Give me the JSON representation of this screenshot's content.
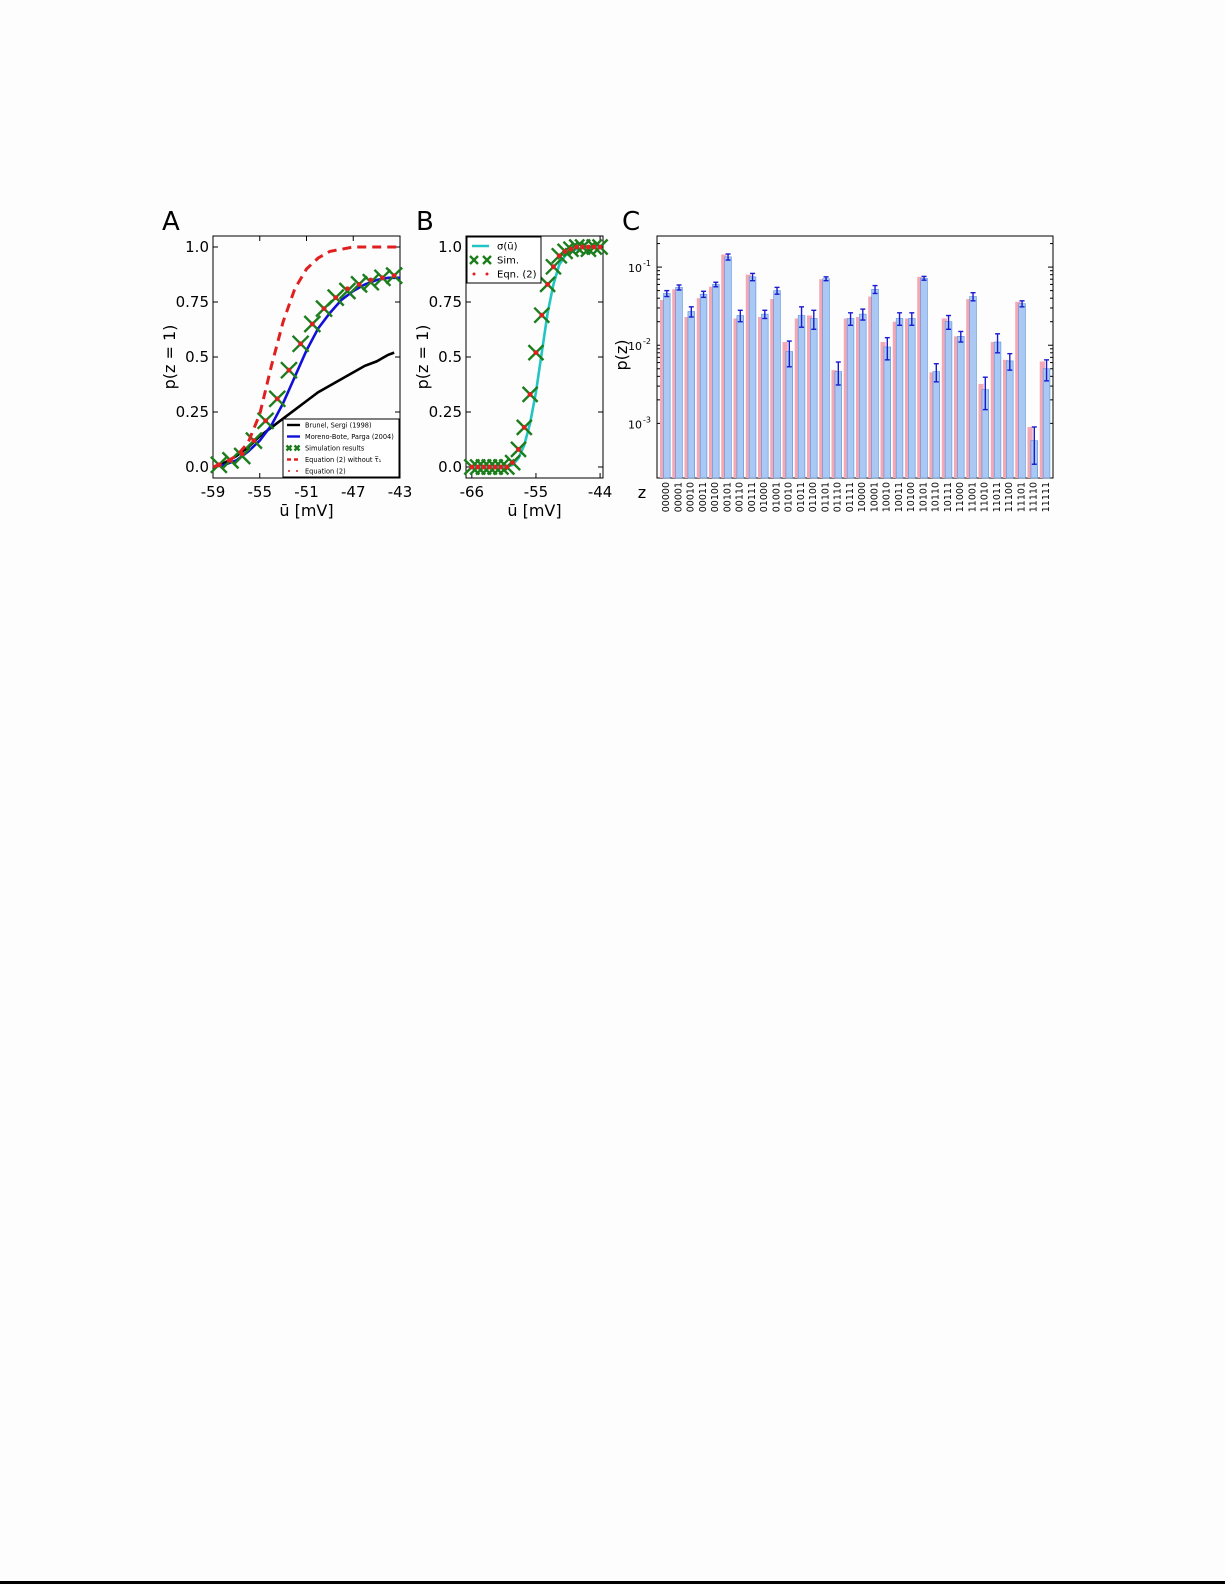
{
  "panels": {
    "A": {
      "label": "A"
    },
    "B": {
      "label": "B"
    },
    "C": {
      "label": "C"
    }
  },
  "colors": {
    "black": "#000000",
    "blue": "#1010d8",
    "green": "#1b7d1b",
    "red": "#e02020",
    "cyan": "#22c4c4",
    "bar_pink": "#f4a7b4",
    "bar_blue": "#a9c8f3",
    "bar_blue_edge": "#5a8fd8",
    "error_blue": "#1a1ad0"
  },
  "chart_data": [
    {
      "id": "A",
      "type": "line",
      "xlabel": "ū [mV]",
      "ylabel": "p(z = 1)",
      "xlim": [
        -59,
        -43
      ],
      "ylim": [
        0,
        1
      ],
      "xticks": [
        -59,
        -55,
        -51,
        -47,
        -43
      ],
      "yticks": [
        0.0,
        0.25,
        0.5,
        0.75,
        1.0
      ],
      "ytick_labels": [
        "0.0",
        "0.25",
        "0.5",
        "0.75",
        "1.0"
      ],
      "legend_position": "lower-right",
      "series": [
        {
          "name": "Brunel, Sergi (1998)",
          "style": "line",
          "color": "black",
          "x": [
            -59,
            -58,
            -57,
            -56,
            -55,
            -54,
            -53,
            -52,
            -51,
            -50,
            -49,
            -48,
            -47,
            -46,
            -45,
            -44,
            -43.5
          ],
          "y": [
            0.0,
            0.02,
            0.05,
            0.09,
            0.14,
            0.18,
            0.22,
            0.26,
            0.3,
            0.34,
            0.37,
            0.4,
            0.43,
            0.46,
            0.48,
            0.51,
            0.52
          ]
        },
        {
          "name": "Moreno-Bote, Parga (2004)",
          "style": "line",
          "color": "blue",
          "x": [
            -59,
            -58,
            -57,
            -56,
            -55,
            -54,
            -53,
            -52,
            -51,
            -50,
            -49,
            -48,
            -47,
            -46,
            -45,
            -44,
            -43
          ],
          "y": [
            0.0,
            0.01,
            0.03,
            0.07,
            0.12,
            0.19,
            0.29,
            0.41,
            0.53,
            0.63,
            0.7,
            0.76,
            0.8,
            0.83,
            0.85,
            0.86,
            0.86
          ]
        },
        {
          "name": "Simulation results",
          "style": "x-marker",
          "color": "green",
          "x": [
            -58.5,
            -57.5,
            -56.5,
            -55.5,
            -54.5,
            -53.5,
            -52.5,
            -51.5,
            -50.5,
            -49.5,
            -48.5,
            -47.5,
            -46.5,
            -45.5,
            -44.5,
            -43.5
          ],
          "y": [
            0.01,
            0.03,
            0.05,
            0.12,
            0.21,
            0.31,
            0.44,
            0.56,
            0.65,
            0.72,
            0.77,
            0.8,
            0.83,
            0.84,
            0.86,
            0.87
          ]
        },
        {
          "name": "Equation (2) without τ̅₁",
          "style": "dashed",
          "color": "red",
          "x": [
            -59,
            -58,
            -57,
            -56,
            -55,
            -54,
            -53,
            -52,
            -51,
            -50,
            -49,
            -48,
            -47,
            -46,
            -45,
            -44,
            -43
          ],
          "y": [
            0.0,
            0.02,
            0.05,
            0.11,
            0.24,
            0.46,
            0.66,
            0.81,
            0.9,
            0.95,
            0.98,
            0.99,
            1.0,
            1.0,
            1.0,
            1.0,
            1.0
          ]
        },
        {
          "name": "Equation (2)",
          "style": "dot",
          "color": "red",
          "x": [
            -58.5,
            -57.5,
            -56.5,
            -55.5,
            -54.5,
            -53.5,
            -52.5,
            -51.5,
            -50.5,
            -49.5,
            -48.5,
            -47.5,
            -46.5,
            -45.5,
            -44.5,
            -43.5
          ],
          "y": [
            0.01,
            0.03,
            0.06,
            0.12,
            0.21,
            0.31,
            0.44,
            0.56,
            0.65,
            0.72,
            0.77,
            0.81,
            0.83,
            0.85,
            0.86,
            0.87
          ]
        }
      ]
    },
    {
      "id": "B",
      "type": "line",
      "xlabel": "ū [mV]",
      "ylabel": "p(z = 1)",
      "xlim": [
        -67,
        -43.5
      ],
      "ylim": [
        0,
        1
      ],
      "xticks": [
        -66,
        -55,
        -44
      ],
      "yticks": [
        0.0,
        0.25,
        0.5,
        0.75,
        1.0
      ],
      "ytick_labels": [
        "0.0",
        "0.25",
        "0.5",
        "0.75",
        "1.0"
      ],
      "legend_position": "top-left",
      "series": [
        {
          "name": "σ(ū)",
          "style": "line",
          "color": "cyan",
          "x": [
            -66,
            -64,
            -62,
            -60,
            -59,
            -58,
            -57,
            -56,
            -55,
            -54,
            -53,
            -52,
            -51,
            -50,
            -49,
            -48,
            -47,
            -46,
            -45,
            -44
          ],
          "y": [
            0.0,
            0.0,
            0.0,
            0.002,
            0.01,
            0.04,
            0.1,
            0.2,
            0.34,
            0.52,
            0.7,
            0.83,
            0.92,
            0.96,
            0.98,
            0.99,
            1.0,
            1.0,
            1.0,
            1.0
          ]
        },
        {
          "name": "Sim.",
          "style": "x-marker",
          "color": "green",
          "x": [
            -66,
            -65,
            -64,
            -63,
            -62,
            -61,
            -60,
            -59,
            -58,
            -57,
            -56,
            -55,
            -54,
            -53,
            -52,
            -51,
            -50,
            -49,
            -48,
            -47,
            -46,
            -45,
            -44
          ],
          "y": [
            0.0,
            0.0,
            0.0,
            0.0,
            0.0,
            0.0,
            0.0,
            0.02,
            0.08,
            0.18,
            0.33,
            0.52,
            0.69,
            0.83,
            0.91,
            0.96,
            0.98,
            0.99,
            1.0,
            1.0,
            0.99,
            1.0,
            1.0
          ]
        },
        {
          "name": "Eqn. (2)",
          "style": "dot",
          "color": "red",
          "x": [
            -66,
            -65,
            -64,
            -63,
            -62,
            -61,
            -60,
            -59,
            -58,
            -57,
            -56,
            -55,
            -54,
            -53,
            -52,
            -51,
            -50,
            -49,
            -48,
            -47,
            -46,
            -45,
            -44
          ],
          "y": [
            0.0,
            0.0,
            0.0,
            0.0,
            0.0,
            0.0,
            0.0,
            0.02,
            0.08,
            0.18,
            0.33,
            0.52,
            0.69,
            0.83,
            0.91,
            0.96,
            0.98,
            0.99,
            1.0,
            1.0,
            1.0,
            1.0,
            1.0
          ]
        }
      ]
    },
    {
      "id": "C",
      "type": "bar",
      "scale": "log",
      "xlabel": "z",
      "ylabel": "p(z)",
      "ylim": [
        0.0002,
        0.25
      ],
      "yticks": [
        0.001,
        0.01,
        0.1
      ],
      "ytick_labels": [
        "10",
        "10",
        "10"
      ],
      "ytick_exponents": [
        "-3",
        "-2",
        "-1"
      ],
      "categories": [
        "00000",
        "00001",
        "00010",
        "00011",
        "00100",
        "00101",
        "00110",
        "00111",
        "01000",
        "01001",
        "01010",
        "01011",
        "01100",
        "01101",
        "01110",
        "01111",
        "10000",
        "10001",
        "10010",
        "10011",
        "10100",
        "10101",
        "10110",
        "10111",
        "11000",
        "11001",
        "11010",
        "11011",
        "11100",
        "11101",
        "11110",
        "11111"
      ],
      "series": [
        {
          "name": "",
          "color": "bar_pink",
          "values": [
            0.038,
            0.052,
            0.023,
            0.04,
            0.056,
            0.145,
            0.022,
            0.08,
            0.023,
            0.039,
            0.011,
            0.022,
            0.024,
            0.07,
            0.0048,
            0.022,
            0.023,
            0.042,
            0.011,
            0.02,
            0.022,
            0.075,
            0.0045,
            0.022,
            0.013,
            0.039,
            0.0032,
            0.011,
            0.0065,
            0.036,
            0.0009,
            0.0062
          ]
        },
        {
          "name": "",
          "color": "bar_blue",
          "values": [
            0.046,
            0.055,
            0.027,
            0.045,
            0.06,
            0.135,
            0.024,
            0.075,
            0.025,
            0.05,
            0.0083,
            0.024,
            0.022,
            0.071,
            0.0046,
            0.022,
            0.025,
            0.052,
            0.0095,
            0.022,
            0.022,
            0.072,
            0.0046,
            0.02,
            0.013,
            0.042,
            0.0027,
            0.011,
            0.0063,
            0.034,
            0.0006,
            0.005
          ],
          "error": [
            0.004,
            0.004,
            0.004,
            0.004,
            0.004,
            0.012,
            0.004,
            0.008,
            0.003,
            0.005,
            0.003,
            0.007,
            0.006,
            0.004,
            0.0015,
            0.004,
            0.004,
            0.006,
            0.003,
            0.004,
            0.004,
            0.004,
            0.0012,
            0.004,
            0.002,
            0.005,
            0.0012,
            0.003,
            0.0015,
            0.003,
            0.0003,
            0.0015
          ]
        }
      ]
    }
  ]
}
